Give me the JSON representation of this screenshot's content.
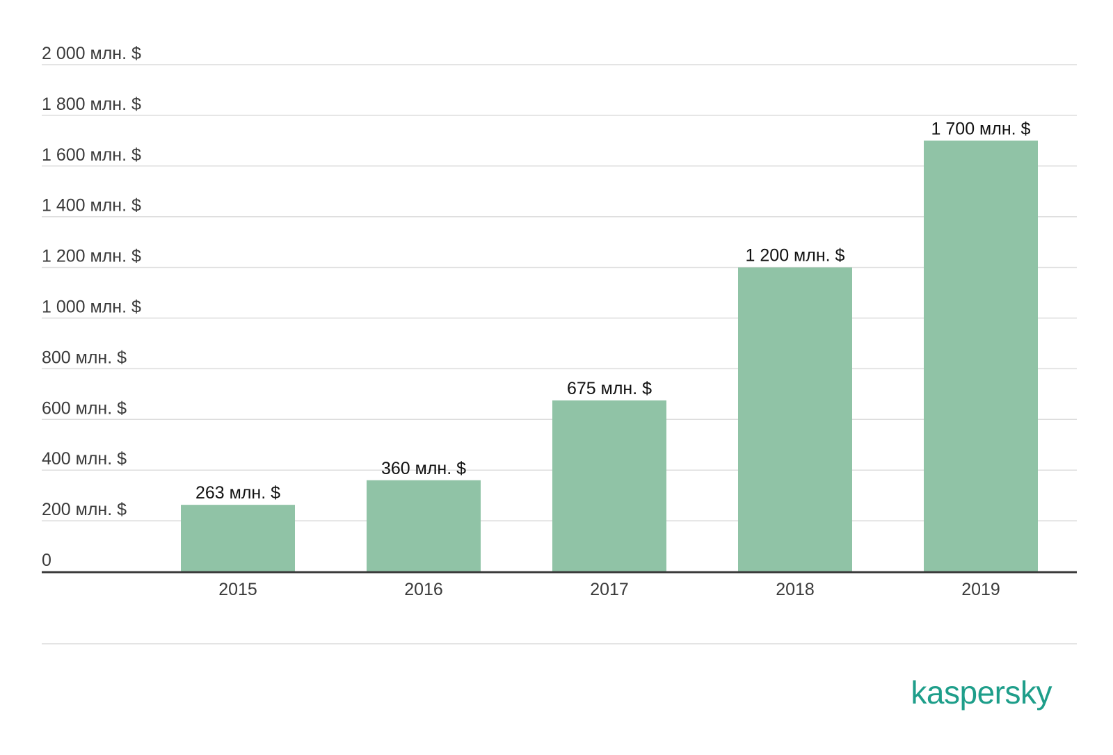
{
  "chart_data": {
    "type": "bar",
    "categories": [
      "2015",
      "2016",
      "2017",
      "2018",
      "2019"
    ],
    "values": [
      263,
      360,
      675,
      1200,
      1700
    ],
    "data_labels": [
      "263 млн. $",
      "360 млн. $",
      "675 млн. $",
      "1 200 млн. $",
      "1 700 млн. $"
    ],
    "ylim": [
      0,
      2000
    ],
    "yticks": [
      {
        "value": 0,
        "label": "0"
      },
      {
        "value": 200,
        "label": "200 млн. $"
      },
      {
        "value": 400,
        "label": "400 млн. $"
      },
      {
        "value": 600,
        "label": "600 млн. $"
      },
      {
        "value": 800,
        "label": "800 млн. $"
      },
      {
        "value": 1000,
        "label": "1 000 млн. $"
      },
      {
        "value": 1200,
        "label": "1 200 млн. $"
      },
      {
        "value": 1400,
        "label": "1 400 млн. $"
      },
      {
        "value": 1600,
        "label": "1 600 млн. $"
      },
      {
        "value": 1800,
        "label": "1 800 млн. $"
      },
      {
        "value": 2000,
        "label": "2 000 млн. $"
      }
    ],
    "grid": true,
    "legend": "none",
    "bar_color": "#90c3a6",
    "grid_color": "#dcdcdc",
    "axis_color": "#3b3b3b"
  },
  "brand": {
    "name": "kaspersky",
    "color": "#1e9e8a"
  }
}
